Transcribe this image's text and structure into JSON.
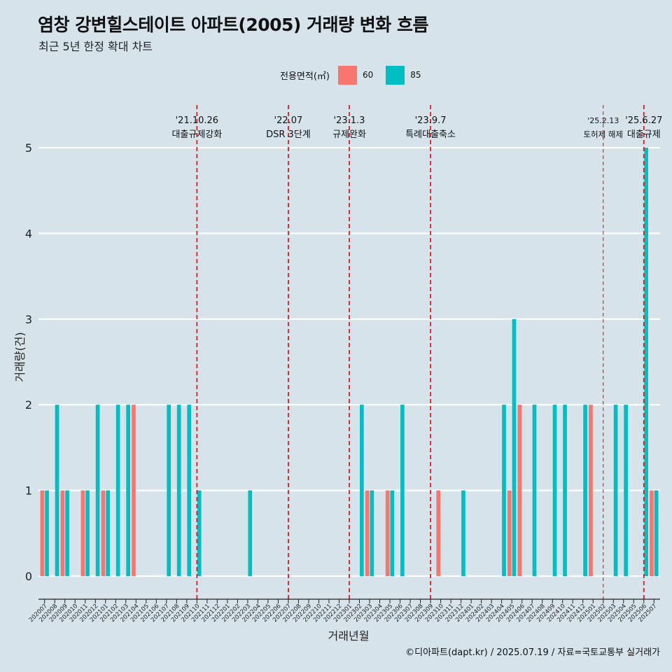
{
  "title": "염창 강변힐스테이트 아파트(2005) 거래량 변화 흐름",
  "subtitle": "최근 5년 한정 확대 차트",
  "caption": "©디아파트(dapt.kr) / 2025.07.19 / 자료=국토교통부 실거래가",
  "legend": {
    "title": "전용면적(㎡)",
    "items": [
      {
        "label": "60",
        "color": "#f8766d"
      },
      {
        "label": "85",
        "color": "#00bfc4"
      }
    ]
  },
  "chart_data": {
    "type": "bar",
    "xlabel": "거래년월",
    "ylabel": "거래량(건)",
    "ylim": [
      0,
      5
    ],
    "yticks": [
      0,
      1,
      2,
      3,
      4,
      5
    ],
    "grid": true,
    "legend_position": "top",
    "categories": [
      "202007",
      "202008",
      "202009",
      "202010",
      "202011",
      "202012",
      "202101",
      "202102",
      "202103",
      "202104",
      "202105",
      "202106",
      "202107",
      "202108",
      "202109",
      "202110",
      "202111",
      "202112",
      "202201",
      "202202",
      "202203",
      "202204",
      "202205",
      "202206",
      "202207",
      "202208",
      "202209",
      "202210",
      "202211",
      "202212",
      "202301",
      "202302",
      "202303",
      "202304",
      "202305",
      "202306",
      "202307",
      "202308",
      "202309",
      "202310",
      "202311",
      "202312",
      "202401",
      "202402",
      "202403",
      "202404",
      "202405",
      "202406",
      "202407",
      "202408",
      "202409",
      "202410",
      "202411",
      "202412",
      "202501",
      "202502",
      "202503",
      "202504",
      "202505",
      "202506",
      "202507"
    ],
    "series": [
      {
        "name": "60",
        "color": "#f8766d",
        "values": [
          1,
          0,
          1,
          0,
          1,
          0,
          1,
          0,
          0,
          2,
          0,
          0,
          0,
          0,
          0,
          0,
          0,
          0,
          0,
          0,
          0,
          0,
          0,
          0,
          0,
          0,
          0,
          0,
          0,
          0,
          0,
          0,
          1,
          0,
          1,
          0,
          0,
          0,
          0,
          1,
          0,
          0,
          0,
          0,
          0,
          0,
          1,
          2,
          0,
          0,
          0,
          0,
          0,
          0,
          2,
          0,
          0,
          0,
          0,
          0,
          1
        ]
      },
      {
        "name": "85",
        "color": "#00bfc4",
        "values": [
          1,
          2,
          1,
          0,
          1,
          2,
          1,
          2,
          2,
          0,
          0,
          0,
          2,
          2,
          2,
          1,
          0,
          0,
          0,
          0,
          1,
          0,
          0,
          0,
          0,
          0,
          0,
          0,
          0,
          0,
          0,
          2,
          1,
          0,
          1,
          2,
          0,
          0,
          0,
          0,
          0,
          1,
          0,
          0,
          0,
          2,
          3,
          0,
          2,
          0,
          2,
          2,
          0,
          2,
          0,
          0,
          2,
          2,
          0,
          5,
          1
        ]
      }
    ],
    "annotations": [
      {
        "date_label": "'21.10.26",
        "text": "대출규제강화",
        "category": "202110",
        "style": "major"
      },
      {
        "date_label": "'22.07",
        "text": "DSR 3단계",
        "category": "202207",
        "style": "major"
      },
      {
        "date_label": "'23.1.3",
        "text": "규제완화",
        "category": "202301",
        "style": "major"
      },
      {
        "date_label": "'23.9.7",
        "text": "특례대출축소",
        "category": "202309",
        "style": "major"
      },
      {
        "date_label": "'25.2.13",
        "text": "토허제 해제",
        "category": "202502",
        "style": "minor"
      },
      {
        "date_label": "'25.6.27",
        "text": "대출규제",
        "category": "202506",
        "style": "major"
      }
    ]
  }
}
